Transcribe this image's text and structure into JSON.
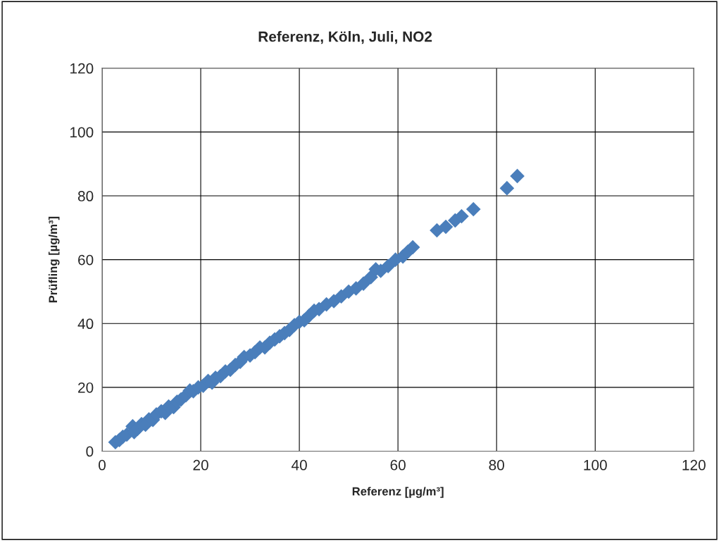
{
  "chart_data": {
    "type": "scatter",
    "title": "Referenz, Köln, Juli, NO2",
    "xlabel": "Referenz [µg/m³]",
    "ylabel": "Prüfling [µg/m³]",
    "x": [
      2.7,
      3.5,
      4.2,
      5,
      6.2,
      6.5,
      7.2,
      8,
      8.8,
      9.5,
      10.3,
      11,
      12,
      12.8,
      13.5,
      14.5,
      15.2,
      16,
      17,
      17.8,
      18.5,
      19.5,
      20.5,
      21.5,
      22.3,
      23,
      24,
      25,
      26,
      27,
      28,
      28.8,
      30,
      31,
      32,
      33,
      34,
      35,
      36,
      37,
      38,
      39,
      40,
      41,
      42,
      43,
      44,
      45.5,
      47,
      48.5,
      50,
      51.5,
      53,
      54.5,
      55.5,
      56.5,
      58,
      59.5,
      61,
      62,
      63,
      67.9,
      69.7,
      71.6,
      72.9,
      75.3,
      82.1,
      84.2
    ],
    "values": [
      2.8,
      3.5,
      4.5,
      5.2,
      7.8,
      6,
      7,
      8.5,
      8.3,
      10,
      9.8,
      11.5,
      12.5,
      12,
      14,
      13.8,
      15.5,
      16.2,
      17.5,
      19,
      18.8,
      20,
      20.5,
      22,
      21.5,
      23,
      23.5,
      25,
      25.5,
      27,
      28,
      29.5,
      30,
      31,
      32.5,
      32.5,
      34,
      35,
      36,
      37,
      38,
      39.5,
      40.5,
      41,
      42.5,
      44,
      44.5,
      46,
      47,
      48.5,
      50,
      51,
      52.5,
      54.5,
      57,
      56.5,
      58,
      60,
      61,
      62.5,
      63.9,
      69.2,
      70.3,
      72.3,
      73.6,
      75.8,
      82.4,
      86.2
    ],
    "color": "#4a7ebb",
    "marker": "diamond",
    "xlim": [
      0,
      120
    ],
    "ylim": [
      0,
      120
    ],
    "xticks": [
      0,
      20,
      40,
      60,
      80,
      100,
      120
    ],
    "yticks": [
      0,
      20,
      40,
      60,
      80,
      100,
      120
    ],
    "grid": true
  }
}
